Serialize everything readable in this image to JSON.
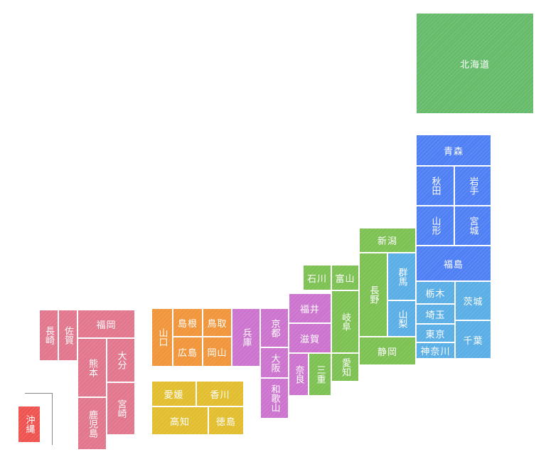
{
  "regions": [
    {
      "color": "#66bb6a",
      "prefectures": [
        "北海道"
      ]
    },
    {
      "color": "#4f7ff5",
      "prefectures": [
        "青森",
        "秋田",
        "岩手",
        "山形",
        "宮城",
        "福島"
      ]
    },
    {
      "color": "#5aaee6",
      "prefectures": [
        "群馬",
        "山梨",
        "栃木",
        "茨城",
        "埼玉",
        "東京",
        "千葉",
        "神奈川"
      ]
    },
    {
      "color": "#7cc152",
      "prefectures": [
        "新潟",
        "長野",
        "石川",
        "富山",
        "岐阜",
        "静岡",
        "愛知",
        "三重"
      ]
    },
    {
      "color": "#cc73cf",
      "prefectures": [
        "福井",
        "滋賀",
        "奈良",
        "京都",
        "大阪",
        "和歌山",
        "兵庫"
      ]
    },
    {
      "color": "#f0953a",
      "prefectures": [
        "山口",
        "島根",
        "鳥取",
        "広島",
        "岡山"
      ]
    },
    {
      "color": "#e2be2e",
      "prefectures": [
        "愛媛",
        "香川",
        "高知",
        "徳島"
      ]
    },
    {
      "color": "#e1768d",
      "prefectures": [
        "長崎",
        "佐賀",
        "福岡",
        "熊本",
        "大分",
        "鹿児島",
        "宮崎"
      ]
    },
    {
      "color": "#ef5350",
      "prefectures": [
        "沖縄"
      ]
    }
  ]
}
